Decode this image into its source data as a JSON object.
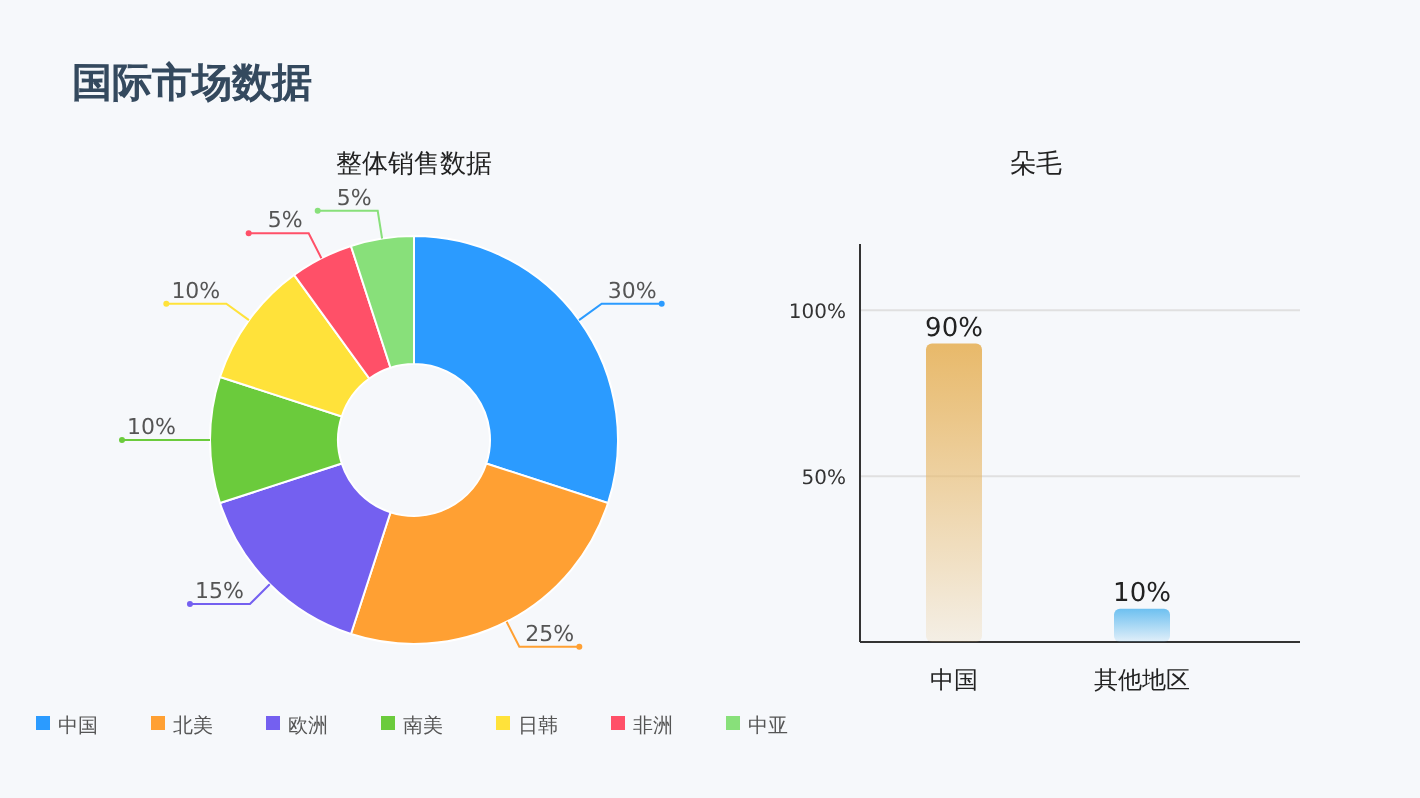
{
  "chart_data": [
    {
      "type": "donut",
      "title": "整体销售数据",
      "annotations": [
        "国际市场数据"
      ],
      "categories": [
        "中国",
        "北美",
        "欧洲",
        "南美",
        "日韩",
        "非洲",
        "中亚"
      ],
      "values": [
        30,
        25,
        15,
        10,
        10,
        5,
        5
      ],
      "colors": [
        "#2b9bff",
        "#ffa033",
        "#7460f0",
        "#6bcb3c",
        "#ffe23a",
        "#ff5068",
        "#88e07a"
      ],
      "value_labels": [
        "30%",
        "25%",
        "15%",
        "10%",
        "10%",
        "5%",
        "5%"
      ],
      "legend": "bottom"
    },
    {
      "type": "bar",
      "title": "朵毛",
      "categories": [
        "中国",
        "其他地区"
      ],
      "values": [
        90,
        10
      ],
      "value_labels": [
        "90%",
        "10%"
      ],
      "colors": [
        "#e8b96a",
        "#6ec0f0"
      ],
      "ylim": [
        0,
        120
      ],
      "yticks": [
        {
          "value": 50,
          "label": "50%"
        },
        {
          "value": 100,
          "label": "100%"
        }
      ],
      "grid": "y"
    }
  ]
}
